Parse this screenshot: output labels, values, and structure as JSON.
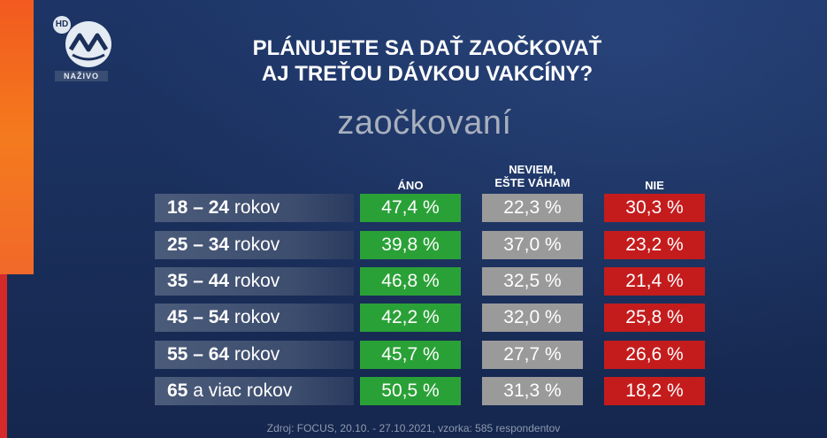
{
  "broadcast": {
    "hd_badge": "HD",
    "live_label": "NAŽIVO"
  },
  "title_line1": "PLÁNUJETE SA DAŤ ZAOČKOVAŤ",
  "title_line2": "AJ TREŤOU DÁVKOU VAKCÍNY?",
  "subtitle": "zaočkovaní",
  "columns": {
    "yes": "ÁNO",
    "maybe_line1": "NEVIEM,",
    "maybe_line2": "EŠTE VÁHAM",
    "no": "NIE"
  },
  "rows": [
    {
      "age": "18 – 24",
      "unit": "rokov",
      "yes": "47,4 %",
      "maybe": "22,3 %",
      "no": "30,3 %"
    },
    {
      "age": "25 – 34",
      "unit": "rokov",
      "yes": "39,8 %",
      "maybe": "37,0 %",
      "no": "23,2 %"
    },
    {
      "age": "35 – 44",
      "unit": "rokov",
      "yes": "46,8 %",
      "maybe": "32,5 %",
      "no": "21,4 %"
    },
    {
      "age": "45 – 54",
      "unit": "rokov",
      "yes": "42,2 %",
      "maybe": "32,0 %",
      "no": "25,8 %"
    },
    {
      "age": "55 – 64",
      "unit": "rokov",
      "yes": "45,7 %",
      "maybe": "27,7 %",
      "no": "26,6 %"
    },
    {
      "age": "65",
      "unit": "a viac rokov",
      "yes": "50,5 %",
      "maybe": "31,3 %",
      "no": "18,2 %"
    }
  ],
  "source": "Zdroj: FOCUS, 20.10. - 27.10.2021, vzorka: 585 respondentov",
  "colors": {
    "yes": "#2aa137",
    "maybe": "#9a9a9a",
    "no": "#c41c1d",
    "accent": "#f47a1e"
  },
  "chart_data": {
    "type": "table",
    "title": "PLÁNUJETE SA DAŤ ZAOČKOVAŤ AJ TREŤOU DÁVKOU VAKCÍNY?",
    "subtitle": "zaočkovaní",
    "categories": [
      "18 – 24 rokov",
      "25 – 34 rokov",
      "35 – 44 rokov",
      "45 – 54 rokov",
      "55 – 64 rokov",
      "65 a viac rokov"
    ],
    "series": [
      {
        "name": "ÁNO",
        "values": [
          47.4,
          39.8,
          46.8,
          42.2,
          45.7,
          50.5
        ]
      },
      {
        "name": "NEVIEM, EŠTE VÁHAM",
        "values": [
          22.3,
          37.0,
          32.5,
          32.0,
          27.7,
          31.3
        ]
      },
      {
        "name": "NIE",
        "values": [
          30.3,
          23.2,
          21.4,
          25.8,
          26.6,
          18.2
        ]
      }
    ]
  }
}
